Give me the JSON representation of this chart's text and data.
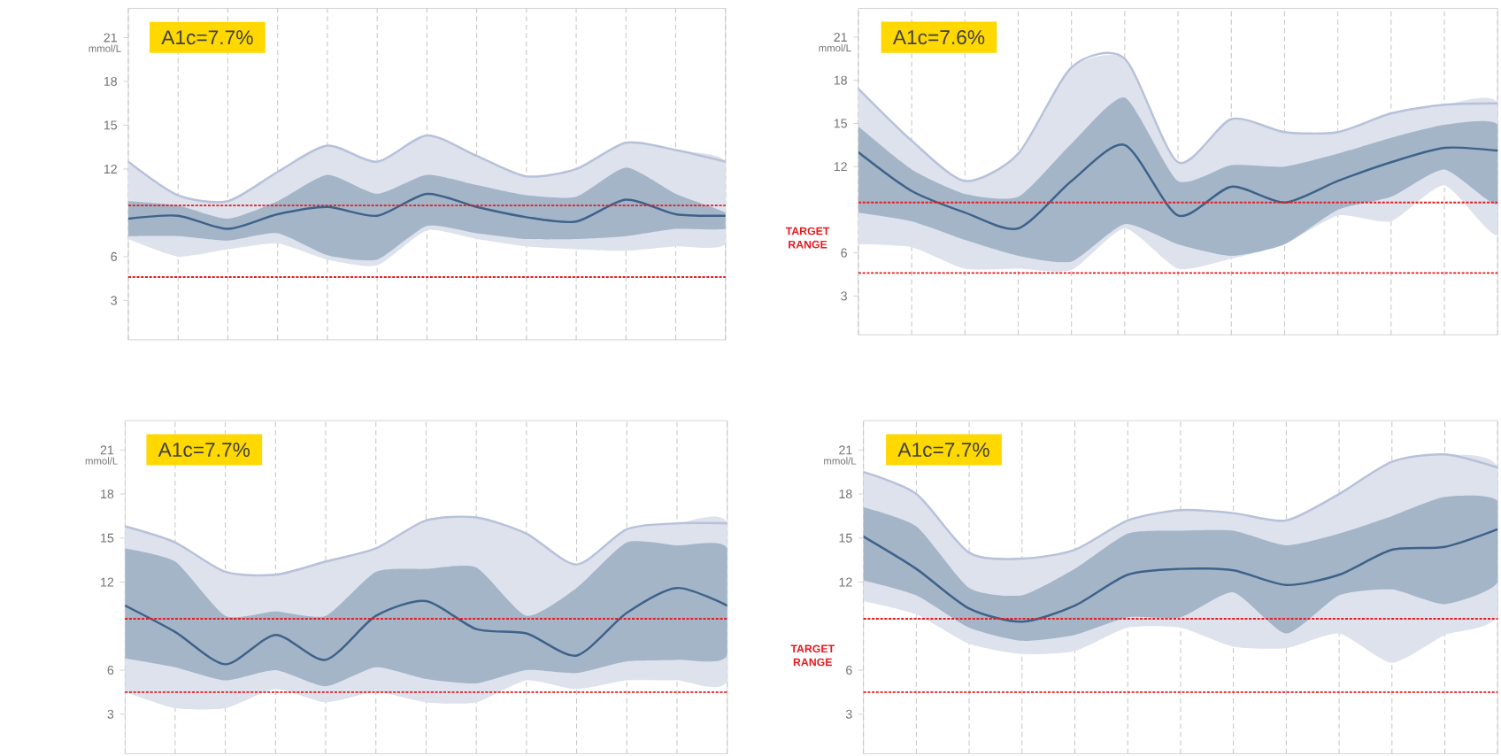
{
  "chart_data": [
    {
      "type": "line",
      "categories": [
        null,
        null,
        null,
        null,
        null,
        null,
        null,
        null,
        null,
        null,
        null,
        null,
        null
      ],
      "ylabel": "mmol/L",
      "ylim": [
        0.3,
        23
      ],
      "yticks": [
        3,
        6,
        12,
        15,
        18,
        21
      ],
      "grid": "x",
      "annotations": [
        "A1c=7.7%"
      ],
      "ref_lines": [
        {
          "axis": "y",
          "value": 9.5,
          "color": "#e8191f",
          "line_style": "dotted"
        },
        {
          "axis": "y",
          "value": 4.6,
          "color": "#e8191f",
          "line_style": "dotted"
        }
      ],
      "series": [
        {
          "color": "#b7c1d9",
          "values": [
            12.5,
            10.2,
            9.8,
            11.8,
            13.6,
            12.5,
            14.3,
            12.9,
            11.5,
            12.0,
            13.8,
            13.3,
            12.5
          ],
          "upper": [
            12.5,
            10.2,
            9.8,
            11.8,
            13.6,
            12.5,
            14.3,
            12.9,
            11.5,
            12.0,
            13.8,
            13.3,
            12.5
          ],
          "lower": [
            7.2,
            6.0,
            6.5,
            6.9,
            5.8,
            5.4,
            7.8,
            7.2,
            6.7,
            6.5,
            6.4,
            6.7,
            6.9
          ]
        },
        {
          "color": "#3e6289",
          "values": [
            8.6,
            8.8,
            7.9,
            8.9,
            9.4,
            8.8,
            10.3,
            9.4,
            8.7,
            8.4,
            9.9,
            8.9,
            8.8
          ],
          "upper": [
            9.8,
            9.5,
            8.6,
            9.8,
            11.6,
            10.3,
            11.6,
            10.9,
            10.2,
            10.1,
            12.1,
            10.3,
            9.0
          ],
          "lower": [
            7.4,
            7.4,
            7.1,
            7.6,
            6.1,
            5.8,
            8.1,
            7.6,
            7.2,
            7.2,
            7.4,
            7.9,
            7.9
          ]
        }
      ]
    },
    {
      "type": "line",
      "categories": [
        null,
        null,
        null,
        null,
        null,
        null,
        null,
        null,
        null,
        null,
        null,
        null,
        null
      ],
      "ylabel": "mmol/L",
      "ylim": [
        0.3,
        23
      ],
      "yticks": [
        3,
        6,
        12,
        15,
        18,
        21
      ],
      "grid": "x",
      "annotations": [
        "A1c=7.6%",
        "TARGET RANGE"
      ],
      "ref_lines": [
        {
          "axis": "y",
          "value": 9.5,
          "color": "#e8191f",
          "line_style": "dotted"
        },
        {
          "axis": "y",
          "value": 4.6,
          "color": "#e8191f",
          "line_style": "dotted"
        }
      ],
      "series": [
        {
          "color": "#b7c1d9",
          "values": [
            17.4,
            13.8,
            11.0,
            12.9,
            18.9,
            19.5,
            12.3,
            15.3,
            14.4,
            14.4,
            15.7,
            16.3,
            16.4
          ],
          "upper": [
            17.4,
            13.8,
            11.0,
            12.9,
            18.9,
            19.5,
            12.3,
            15.3,
            14.4,
            14.4,
            15.7,
            16.3,
            16.4
          ],
          "lower": [
            6.6,
            6.4,
            4.9,
            4.9,
            4.8,
            7.7,
            4.9,
            5.6,
            6.6,
            8.6,
            8.2,
            10.7,
            7.3
          ]
        },
        {
          "color": "#3e6289",
          "values": [
            13.0,
            10.3,
            8.8,
            7.7,
            11.0,
            13.5,
            8.6,
            10.6,
            9.5,
            11.0,
            12.3,
            13.3,
            13.1
          ],
          "upper": [
            14.8,
            11.8,
            10.1,
            9.9,
            13.6,
            16.8,
            11.0,
            12.1,
            12.0,
            12.9,
            14.0,
            14.9,
            14.9
          ],
          "lower": [
            8.8,
            8.2,
            6.9,
            5.8,
            5.4,
            8.0,
            6.6,
            5.8,
            6.6,
            9.0,
            9.9,
            11.8,
            9.4
          ]
        }
      ]
    },
    {
      "type": "line",
      "categories": [
        null,
        null,
        null,
        null,
        null,
        null,
        null,
        null,
        null,
        null,
        null,
        null,
        null
      ],
      "ylabel": "mmol/L",
      "ylim": [
        0.3,
        23
      ],
      "yticks": [
        3,
        6,
        12,
        15,
        18,
        21
      ],
      "grid": "x",
      "annotations": [
        "A1c=7.7%"
      ],
      "ref_lines": [
        {
          "axis": "y",
          "value": 9.5,
          "color": "#e8191f",
          "line_style": "dotted"
        },
        {
          "axis": "y",
          "value": 4.5,
          "color": "#e8191f",
          "line_style": "dotted"
        }
      ],
      "series": [
        {
          "color": "#b7c1d9",
          "values": [
            15.8,
            14.7,
            12.7,
            12.5,
            13.4,
            14.3,
            16.2,
            16.4,
            15.3,
            13.2,
            15.6,
            16.0,
            16.0
          ],
          "upper": [
            15.8,
            14.7,
            12.7,
            12.5,
            13.4,
            14.3,
            16.2,
            16.4,
            15.3,
            13.2,
            15.6,
            16.0,
            16.0
          ],
          "lower": [
            4.5,
            3.4,
            3.4,
            4.7,
            3.8,
            4.5,
            3.8,
            3.8,
            5.3,
            4.7,
            5.3,
            5.3,
            5.3
          ]
        },
        {
          "color": "#3e6289",
          "values": [
            10.4,
            8.6,
            6.4,
            8.4,
            6.7,
            9.7,
            10.7,
            8.8,
            8.5,
            7.0,
            9.9,
            11.6,
            10.4
          ],
          "upper": [
            14.3,
            13.4,
            9.7,
            10.0,
            9.7,
            12.7,
            12.9,
            13.0,
            9.7,
            11.6,
            14.7,
            14.5,
            14.3
          ],
          "lower": [
            6.8,
            6.2,
            5.3,
            6.0,
            4.9,
            6.2,
            5.4,
            5.1,
            6.0,
            5.8,
            6.6,
            6.7,
            7.0
          ]
        }
      ]
    },
    {
      "type": "line",
      "categories": [
        null,
        null,
        null,
        null,
        null,
        null,
        null,
        null,
        null,
        null,
        null,
        null,
        null
      ],
      "ylabel": "mmol/L",
      "ylim": [
        0.3,
        23
      ],
      "yticks": [
        3,
        6,
        12,
        15,
        18,
        21
      ],
      "grid": "x",
      "annotations": [
        "A1c=7.7%",
        "TARGET RANGE"
      ],
      "ref_lines": [
        {
          "axis": "y",
          "value": 9.5,
          "color": "#e8191f",
          "line_style": "dotted"
        },
        {
          "axis": "y",
          "value": 4.5,
          "color": "#e8191f",
          "line_style": "dotted"
        }
      ],
      "series": [
        {
          "color": "#b7c1d9",
          "values": [
            19.5,
            18.0,
            14.0,
            13.6,
            14.2,
            16.2,
            16.9,
            16.7,
            16.2,
            18.0,
            20.2,
            20.7,
            19.8
          ],
          "upper": [
            19.5,
            18.0,
            14.0,
            13.6,
            14.2,
            16.2,
            16.9,
            16.7,
            16.2,
            18.0,
            20.2,
            20.7,
            19.8
          ],
          "lower": [
            10.7,
            9.8,
            7.8,
            7.1,
            7.3,
            8.9,
            8.9,
            7.6,
            7.5,
            8.5,
            6.5,
            8.4,
            9.8
          ]
        },
        {
          "color": "#3e6289",
          "values": [
            15.1,
            12.9,
            10.2,
            9.3,
            10.4,
            12.5,
            12.9,
            12.8,
            11.8,
            12.5,
            14.2,
            14.4,
            15.6
          ],
          "upper": [
            17.1,
            15.8,
            11.6,
            11.1,
            12.9,
            15.3,
            15.5,
            15.5,
            14.5,
            15.3,
            16.5,
            17.8,
            17.5
          ],
          "lower": [
            12.1,
            11.1,
            8.9,
            8.0,
            8.4,
            9.6,
            9.6,
            11.3,
            8.5,
            11.1,
            11.5,
            10.5,
            12.0
          ]
        }
      ]
    }
  ]
}
